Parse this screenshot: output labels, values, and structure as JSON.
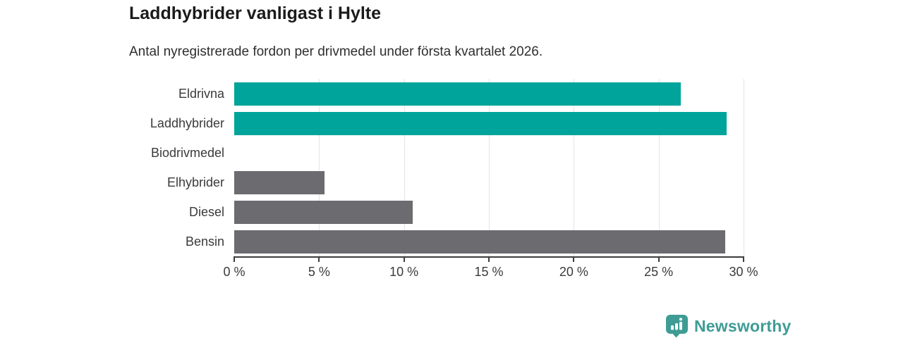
{
  "header": {
    "title": "Laddhybrider vanligast i Hylte",
    "subtitle": "Antal nyregistrerade fordon per drivmedel under första kvartalet 2026."
  },
  "chart_data": {
    "type": "bar",
    "orientation": "horizontal",
    "title": "Laddhybrider vanligast i Hylte",
    "subtitle": "Antal nyregistrerade fordon per drivmedel under första kvartalet 2026.",
    "categories": [
      "Eldrivna",
      "Laddhybrider",
      "Biodrivmedel",
      "Elhybrider",
      "Diesel",
      "Bensin"
    ],
    "values": [
      26.3,
      29.0,
      0,
      5.3,
      10.5,
      28.9
    ],
    "bar_colors": [
      "#00a49b",
      "#00a49b",
      "#6b6b70",
      "#6b6b70",
      "#6b6b70",
      "#6b6b70"
    ],
    "xlim": [
      0,
      30
    ],
    "xticks": [
      0,
      5,
      10,
      15,
      20,
      25,
      30
    ],
    "xtick_labels": [
      "0 %",
      "5 %",
      "10 %",
      "15 %",
      "20 %",
      "25 %",
      "30 %"
    ],
    "xlabel": "",
    "ylabel": "",
    "grid": "vertical",
    "legend": "none"
  },
  "branding": {
    "logo_text": "Newsworthy",
    "logo_color": "#3f9c95",
    "icon": "bar-chart-pin-icon"
  },
  "colors": {
    "accent_teal": "#00a49b",
    "neutral_gray": "#6b6b70",
    "gridline": "#e4e4e4",
    "axis": "#3d3d3d",
    "text": "#3a3a3a",
    "title_text": "#1b1b1b"
  }
}
